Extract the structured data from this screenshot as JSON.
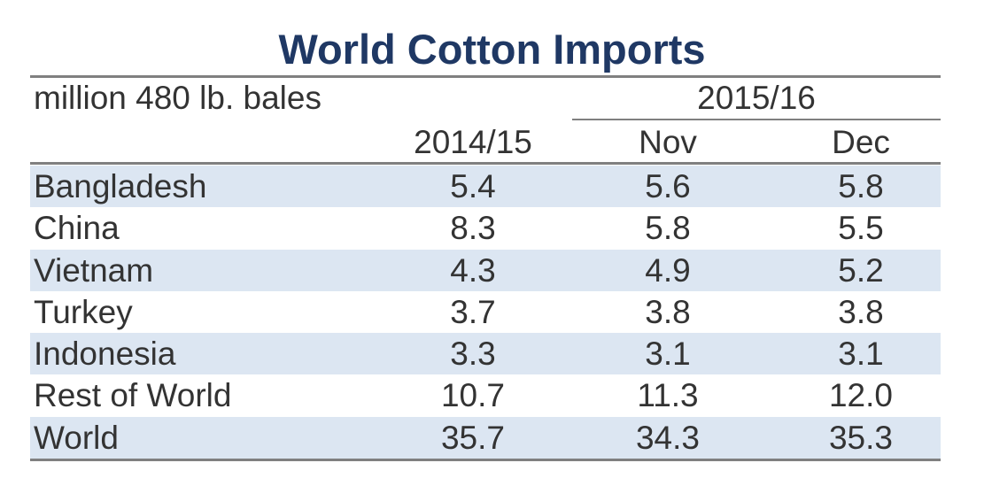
{
  "title": "World Cotton Imports",
  "colors": {
    "title": "#1f3864",
    "text": "#333333",
    "row_shade": "#dce6f2",
    "rule": "#808080"
  },
  "chart_data": {
    "type": "table",
    "title": "World Cotton Imports",
    "unit_label": "million 480 lb. bales",
    "group_header": "2015/16",
    "columns": [
      "2014/15",
      "Nov",
      "Dec"
    ],
    "rows": [
      {
        "name": "Bangladesh",
        "values": [
          "5.4",
          "5.6",
          "5.8"
        ]
      },
      {
        "name": "China",
        "values": [
          "8.3",
          "5.8",
          "5.5"
        ]
      },
      {
        "name": "Vietnam",
        "values": [
          "4.3",
          "4.9",
          "5.2"
        ]
      },
      {
        "name": "Turkey",
        "values": [
          "3.7",
          "3.8",
          "3.8"
        ]
      },
      {
        "name": "Indonesia",
        "values": [
          "3.3",
          "3.1",
          "3.1"
        ]
      },
      {
        "name": "Rest of World",
        "values": [
          "10.7",
          "11.3",
          "12.0"
        ]
      },
      {
        "name": "World",
        "values": [
          "35.7",
          "34.3",
          "35.3"
        ]
      }
    ]
  }
}
